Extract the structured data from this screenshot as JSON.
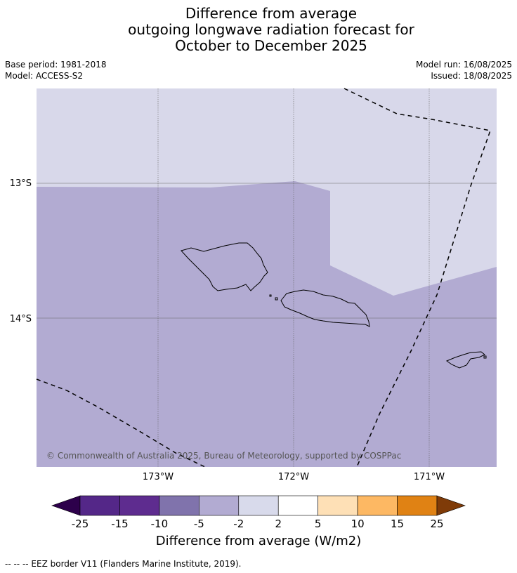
{
  "title": {
    "line1": "Difference from average",
    "line2": "outgoing longwave radiation forecast for",
    "line3": "October to December 2025"
  },
  "meta": {
    "base_period": "Base period: 1981-2018",
    "model": "Model: ACCESS-S2",
    "model_run": "Model run: 16/08/2025",
    "issued": "Issued: 18/08/2025"
  },
  "map": {
    "region": "Samoa",
    "lon_range": [
      -173.9,
      -170.5
    ],
    "lat_range": [
      -15.1,
      -12.3
    ],
    "grid_lons": [
      -173,
      -172,
      -171
    ],
    "grid_lats": [
      -13,
      -14
    ],
    "lon_labels": [
      "173°W",
      "172°W",
      "171°W"
    ],
    "lat_labels": [
      "13°S",
      "14°S"
    ],
    "field_colors": {
      "category_-5_-2": "#d7d7ea",
      "category_-10_-5": "#b2abd2"
    },
    "copyright": "© Commonwealth of Australia 2025, Bureau of Meteorology, supported by COSPPac"
  },
  "colorbar": {
    "ticks": [
      "-25",
      "-15",
      "-10",
      "-5",
      "-2",
      "2",
      "5",
      "10",
      "15",
      "25"
    ],
    "colors": [
      "#542788",
      "#5e2c8f",
      "#8073ac",
      "#b2abd2",
      "#d8daeb",
      "#ffffff",
      "#fee0b6",
      "#fdb863",
      "#e08214",
      "#b35806",
      "#7f3b08"
    ],
    "label": "Difference from average (W/m2)"
  },
  "footer": {
    "legend": "--  --  -- EEZ border V11 (Flanders Marine Institute, 2019)."
  }
}
